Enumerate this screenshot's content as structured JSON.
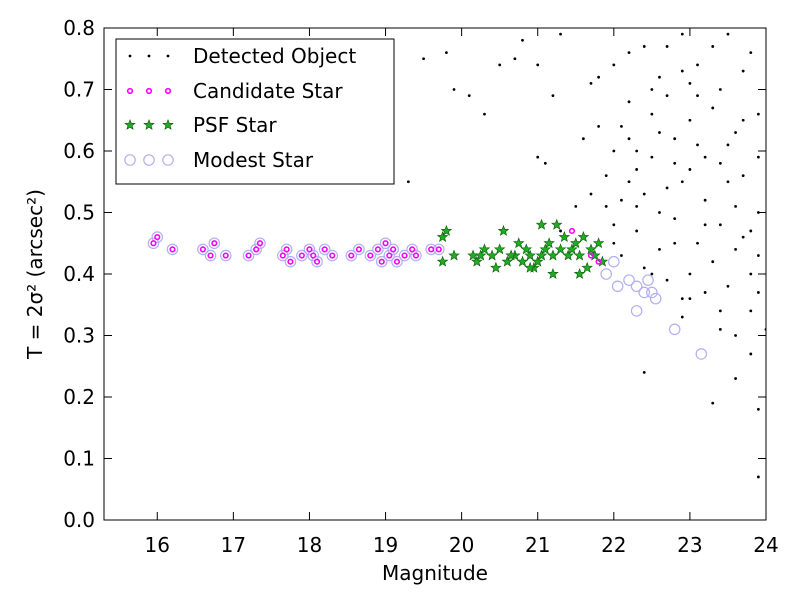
{
  "chart_data": {
    "type": "scatter",
    "xlabel": "Magnitude",
    "ylabel": "T = 2σ² (arcsec²)",
    "xlim": [
      15.3,
      24
    ],
    "ylim": [
      0,
      0.8
    ],
    "xticks": [
      16,
      17,
      18,
      19,
      20,
      21,
      22,
      23,
      24
    ],
    "xtick_labels": [
      "16",
      "17",
      "18",
      "19",
      "20",
      "21",
      "22",
      "23",
      "24"
    ],
    "yticks": [
      0.0,
      0.1,
      0.2,
      0.3,
      0.4,
      0.5,
      0.6,
      0.7,
      0.8
    ],
    "ytick_labels": [
      "0.0",
      "0.1",
      "0.2",
      "0.3",
      "0.4",
      "0.5",
      "0.6",
      "0.7",
      "0.8"
    ],
    "grid": false,
    "legend_position": "top-left",
    "series": [
      {
        "name": "Detected Object",
        "marker": "dot",
        "color": "#000000",
        "points": [
          [
            19.8,
            0.76
          ],
          [
            19.9,
            0.7
          ],
          [
            20.1,
            0.69
          ],
          [
            19.5,
            0.75
          ],
          [
            19.3,
            0.55
          ],
          [
            21.0,
            0.59
          ],
          [
            21.1,
            0.58
          ],
          [
            20.8,
            0.78
          ],
          [
            20.5,
            0.74
          ],
          [
            20.3,
            0.66
          ],
          [
            21.3,
            0.79
          ],
          [
            21.8,
            0.72
          ],
          [
            22.0,
            0.74
          ],
          [
            21.6,
            0.62
          ],
          [
            21.2,
            0.69
          ],
          [
            21.0,
            0.74
          ],
          [
            20.7,
            0.75
          ],
          [
            22.3,
            0.6
          ],
          [
            21.5,
            0.51
          ],
          [
            21.7,
            0.53
          ],
          [
            21.3,
            0.47
          ],
          [
            22.4,
            0.24
          ],
          [
            23.3,
            0.19
          ],
          [
            23.6,
            0.23
          ],
          [
            23.9,
            0.18
          ],
          [
            23.8,
            0.27
          ],
          [
            23.4,
            0.34
          ],
          [
            23.2,
            0.37
          ],
          [
            22.7,
            0.54
          ],
          [
            22.5,
            0.66
          ],
          [
            23.0,
            0.71
          ],
          [
            23.5,
            0.79
          ],
          [
            23.7,
            0.65
          ],
          [
            22.8,
            0.49
          ],
          [
            22.2,
            0.55
          ],
          [
            23.1,
            0.45
          ],
          [
            23.9,
            0.07
          ],
          [
            24.0,
            0.31
          ],
          [
            23.0,
            0.4
          ],
          [
            23.6,
            0.3
          ],
          [
            22.9,
            0.33
          ],
          [
            22.6,
            0.44
          ],
          [
            22.3,
            0.47
          ],
          [
            22.1,
            0.52
          ],
          [
            22.0,
            0.6
          ],
          [
            22.2,
            0.68
          ],
          [
            22.4,
            0.77
          ],
          [
            22.6,
            0.72
          ],
          [
            22.8,
            0.62
          ],
          [
            23.0,
            0.57
          ],
          [
            23.2,
            0.52
          ],
          [
            23.4,
            0.48
          ],
          [
            23.6,
            0.44
          ],
          [
            23.8,
            0.4
          ],
          [
            23.9,
            0.5
          ],
          [
            23.7,
            0.56
          ],
          [
            23.5,
            0.61
          ],
          [
            23.3,
            0.67
          ],
          [
            23.1,
            0.74
          ],
          [
            22.9,
            0.79
          ],
          [
            22.7,
            0.69
          ],
          [
            22.5,
            0.59
          ],
          [
            22.3,
            0.51
          ],
          [
            22.1,
            0.43
          ],
          [
            22.0,
            0.48
          ],
          [
            21.9,
            0.56
          ],
          [
            21.8,
            0.64
          ],
          [
            21.7,
            0.71
          ],
          [
            22.2,
            0.76
          ],
          [
            22.6,
            0.63
          ],
          [
            23.0,
            0.65
          ],
          [
            23.4,
            0.7
          ],
          [
            23.8,
            0.76
          ],
          [
            23.9,
            0.66
          ],
          [
            23.6,
            0.51
          ],
          [
            23.3,
            0.42
          ],
          [
            23.0,
            0.36
          ],
          [
            22.7,
            0.39
          ],
          [
            22.4,
            0.41
          ],
          [
            22.8,
            0.45
          ],
          [
            23.2,
            0.48
          ],
          [
            23.5,
            0.38
          ],
          [
            23.8,
            0.34
          ],
          [
            23.9,
            0.43
          ],
          [
            23.7,
            0.46
          ],
          [
            23.4,
            0.58
          ],
          [
            23.1,
            0.61
          ],
          [
            22.9,
            0.55
          ],
          [
            22.6,
            0.5
          ],
          [
            22.3,
            0.57
          ],
          [
            22.1,
            0.64
          ],
          [
            22.5,
            0.7
          ],
          [
            22.9,
            0.73
          ],
          [
            23.3,
            0.77
          ],
          [
            23.7,
            0.73
          ],
          [
            23.9,
            0.59
          ],
          [
            23.6,
            0.63
          ],
          [
            23.2,
            0.59
          ],
          [
            22.8,
            0.58
          ],
          [
            22.4,
            0.53
          ],
          [
            22.0,
            0.45
          ],
          [
            21.9,
            0.51
          ],
          [
            22.2,
            0.62
          ],
          [
            22.7,
            0.77
          ],
          [
            23.1,
            0.69
          ],
          [
            23.5,
            0.55
          ],
          [
            23.8,
            0.47
          ],
          [
            23.9,
            0.37
          ],
          [
            23.4,
            0.31
          ],
          [
            22.9,
            0.36
          ],
          [
            22.5,
            0.4
          ]
        ]
      },
      {
        "name": "Candidate Star",
        "marker": "small-circle",
        "color": "#ff00ff",
        "points": [
          [
            15.95,
            0.45
          ],
          [
            16.0,
            0.46
          ],
          [
            16.2,
            0.44
          ],
          [
            16.6,
            0.44
          ],
          [
            16.7,
            0.43
          ],
          [
            16.75,
            0.45
          ],
          [
            16.9,
            0.43
          ],
          [
            17.2,
            0.43
          ],
          [
            17.3,
            0.44
          ],
          [
            17.35,
            0.45
          ],
          [
            17.65,
            0.43
          ],
          [
            17.7,
            0.44
          ],
          [
            17.75,
            0.42
          ],
          [
            17.9,
            0.43
          ],
          [
            18.0,
            0.44
          ],
          [
            18.05,
            0.43
          ],
          [
            18.1,
            0.42
          ],
          [
            18.2,
            0.44
          ],
          [
            18.3,
            0.43
          ],
          [
            18.55,
            0.43
          ],
          [
            18.65,
            0.44
          ],
          [
            18.8,
            0.43
          ],
          [
            18.9,
            0.44
          ],
          [
            18.95,
            0.42
          ],
          [
            19.0,
            0.45
          ],
          [
            19.05,
            0.43
          ],
          [
            19.1,
            0.44
          ],
          [
            19.15,
            0.42
          ],
          [
            19.25,
            0.43
          ],
          [
            19.35,
            0.44
          ],
          [
            19.4,
            0.43
          ],
          [
            19.6,
            0.44
          ],
          [
            19.7,
            0.44
          ],
          [
            21.45,
            0.47
          ],
          [
            21.7,
            0.43
          ],
          [
            21.8,
            0.42
          ]
        ]
      },
      {
        "name": "PSF Star",
        "marker": "star",
        "color": "#22aa22",
        "points": [
          [
            19.75,
            0.46
          ],
          [
            19.8,
            0.47
          ],
          [
            19.75,
            0.42
          ],
          [
            19.9,
            0.43
          ],
          [
            20.15,
            0.43
          ],
          [
            20.2,
            0.42
          ],
          [
            20.3,
            0.44
          ],
          [
            20.4,
            0.43
          ],
          [
            20.45,
            0.41
          ],
          [
            20.5,
            0.44
          ],
          [
            20.55,
            0.47
          ],
          [
            20.6,
            0.42
          ],
          [
            20.7,
            0.43
          ],
          [
            20.75,
            0.45
          ],
          [
            20.8,
            0.42
          ],
          [
            20.85,
            0.44
          ],
          [
            20.9,
            0.43
          ],
          [
            20.95,
            0.41
          ],
          [
            21.0,
            0.42
          ],
          [
            21.05,
            0.48
          ],
          [
            21.1,
            0.44
          ],
          [
            21.15,
            0.45
          ],
          [
            21.2,
            0.43
          ],
          [
            21.25,
            0.48
          ],
          [
            21.3,
            0.44
          ],
          [
            21.35,
            0.46
          ],
          [
            21.4,
            0.43
          ],
          [
            21.45,
            0.44
          ],
          [
            21.5,
            0.45
          ],
          [
            21.55,
            0.43
          ],
          [
            21.6,
            0.46
          ],
          [
            21.65,
            0.41
          ],
          [
            21.7,
            0.44
          ],
          [
            21.75,
            0.43
          ],
          [
            21.8,
            0.45
          ],
          [
            21.85,
            0.42
          ],
          [
            20.25,
            0.43
          ],
          [
            20.65,
            0.43
          ],
          [
            21.05,
            0.43
          ],
          [
            21.2,
            0.4
          ],
          [
            21.55,
            0.4
          ],
          [
            20.9,
            0.41
          ]
        ]
      },
      {
        "name": "Modest Star",
        "marker": "open-circle",
        "color": "#b0b0f0",
        "points": [
          [
            15.95,
            0.45
          ],
          [
            16.0,
            0.46
          ],
          [
            16.2,
            0.44
          ],
          [
            16.6,
            0.44
          ],
          [
            16.7,
            0.43
          ],
          [
            16.75,
            0.45
          ],
          [
            16.9,
            0.43
          ],
          [
            17.2,
            0.43
          ],
          [
            17.3,
            0.44
          ],
          [
            17.35,
            0.45
          ],
          [
            17.65,
            0.43
          ],
          [
            17.7,
            0.44
          ],
          [
            17.75,
            0.42
          ],
          [
            17.9,
            0.43
          ],
          [
            18.0,
            0.44
          ],
          [
            18.05,
            0.43
          ],
          [
            18.1,
            0.42
          ],
          [
            18.2,
            0.44
          ],
          [
            18.3,
            0.43
          ],
          [
            18.55,
            0.43
          ],
          [
            18.65,
            0.44
          ],
          [
            18.8,
            0.43
          ],
          [
            18.9,
            0.44
          ],
          [
            18.95,
            0.42
          ],
          [
            19.0,
            0.45
          ],
          [
            19.05,
            0.43
          ],
          [
            19.1,
            0.44
          ],
          [
            19.15,
            0.42
          ],
          [
            19.25,
            0.43
          ],
          [
            19.35,
            0.44
          ],
          [
            19.4,
            0.43
          ],
          [
            19.6,
            0.44
          ],
          [
            19.7,
            0.44
          ],
          [
            21.9,
            0.4
          ],
          [
            22.0,
            0.42
          ],
          [
            22.05,
            0.38
          ],
          [
            22.2,
            0.39
          ],
          [
            22.3,
            0.38
          ],
          [
            22.4,
            0.37
          ],
          [
            22.45,
            0.39
          ],
          [
            22.5,
            0.37
          ],
          [
            22.55,
            0.36
          ],
          [
            22.3,
            0.34
          ],
          [
            22.8,
            0.31
          ],
          [
            23.15,
            0.27
          ]
        ]
      }
    ]
  }
}
